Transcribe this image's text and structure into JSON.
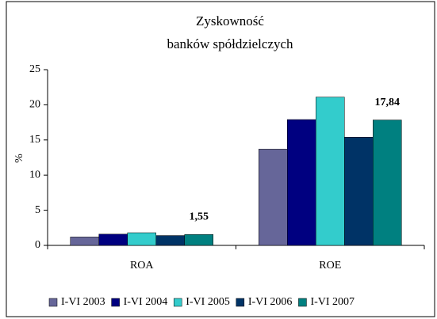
{
  "chart_data": {
    "type": "bar",
    "title": [
      "Zyskowność",
      "banków spółdzielczych"
    ],
    "y_label": "%",
    "categories": [
      "ROA",
      "ROE"
    ],
    "series": [
      {
        "name": "I-VI 2003",
        "color": "#666699",
        "values": [
          1.2,
          13.7
        ],
        "value_labels": [
          null,
          null
        ]
      },
      {
        "name": "I-VI 2004",
        "color": "#000080",
        "values": [
          1.6,
          17.9
        ],
        "value_labels": [
          null,
          null
        ]
      },
      {
        "name": "I-VI 2005",
        "color": "#33cccc",
        "values": [
          1.8,
          21.1
        ],
        "value_labels": [
          null,
          null
        ]
      },
      {
        "name": "I-VI 2006",
        "color": "#003366",
        "values": [
          1.4,
          15.4
        ],
        "value_labels": [
          null,
          null
        ]
      },
      {
        "name": "I-VI 2007",
        "color": "#008080",
        "values": [
          1.55,
          17.84
        ],
        "value_labels": [
          "1,55",
          "17,84"
        ]
      }
    ],
    "ylim": [
      0,
      25
    ],
    "yticks": [
      0,
      5,
      10,
      15,
      20,
      25
    ],
    "grid": false,
    "legend": "bottom"
  }
}
